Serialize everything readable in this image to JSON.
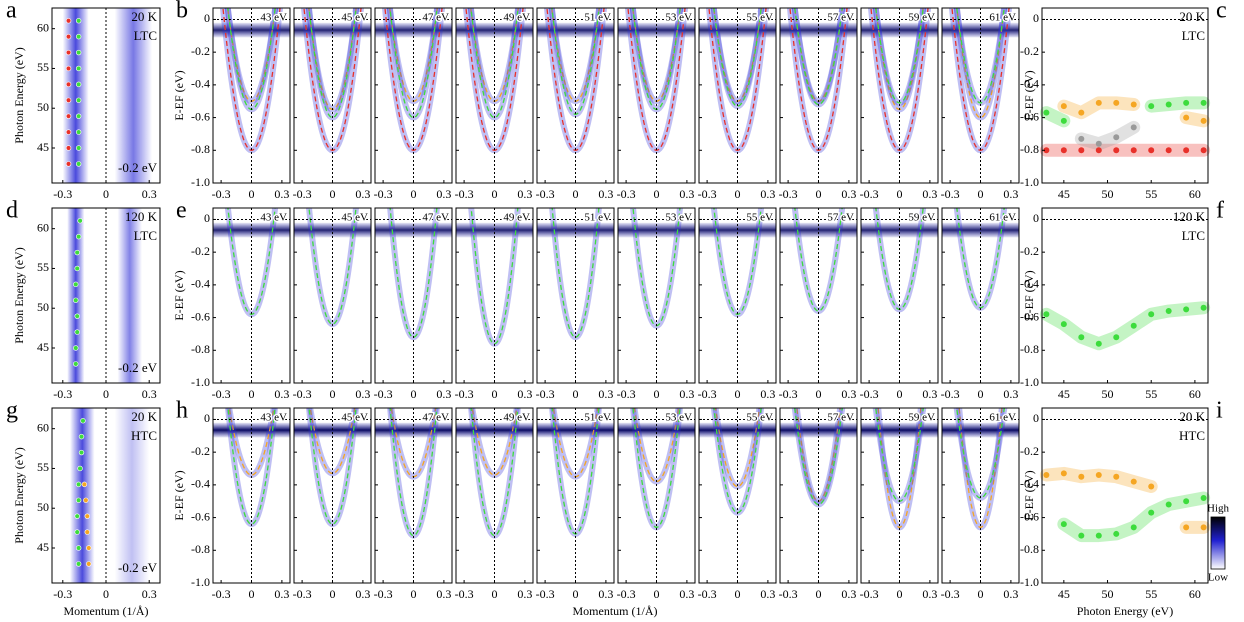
{
  "chart_data": [
    {
      "type": "scatter",
      "label": "a",
      "ylabel": "Photon Energy (eV)",
      "xlim": [
        -0.375,
        0.375
      ],
      "xticks": [
        -0.3,
        0,
        0.3
      ],
      "ylim": [
        40.6,
        62.6
      ],
      "yticks": [
        45,
        50,
        55,
        60
      ],
      "annotations": [
        "20 K",
        "LTC",
        "-0.2 eV"
      ],
      "series": [
        {
          "color": "#e8312a",
          "x": [
            -0.26,
            -0.26,
            -0.26,
            -0.26,
            -0.26,
            -0.26,
            -0.26,
            -0.26,
            -0.26,
            -0.26
          ],
          "values": [
            43,
            45,
            47,
            49,
            51,
            53,
            55,
            57,
            59,
            61
          ]
        },
        {
          "color": "#3ddc3d",
          "x": [
            -0.19,
            -0.19,
            -0.19,
            -0.19,
            -0.19,
            -0.19,
            -0.19,
            -0.19,
            -0.19,
            -0.19
          ],
          "values": [
            43,
            45,
            47,
            49,
            51,
            53,
            55,
            57,
            59,
            61
          ]
        }
      ]
    },
    {
      "type": "spectra",
      "label": "b",
      "ylabel": "E-EF (eV)",
      "xlim": [
        -0.38,
        0.38
      ],
      "xticks": [
        -0.3,
        0,
        0.3
      ],
      "ylim": [
        -1,
        0.07
      ],
      "yticks": [
        0,
        -0.2,
        -0.4,
        -0.6,
        -0.8,
        {
          "value": -1,
          "label": "-1.0"
        }
      ],
      "panels": [
        "43 eV",
        "45 eV",
        "47 eV",
        "49 eV",
        "51 eV",
        "53 eV",
        "55 eV",
        "57 eV",
        "59 eV",
        "61 eV"
      ],
      "bands": [
        {
          "color": "#e8312a",
          "kf": 0.27,
          "values": [
            -0.8,
            -0.8,
            -0.8,
            -0.8,
            -0.8,
            -0.8,
            -0.8,
            -0.8,
            -0.8,
            -0.8
          ]
        },
        {
          "color": "#f5a623",
          "kf": 0.22,
          "values": [
            -0.5,
            -0.55,
            -0.5,
            -0.5,
            -0.5,
            -0.5,
            -0.5,
            -0.5,
            -0.55,
            -0.6
          ]
        },
        {
          "color": "#3ddc3d",
          "kf": 0.22,
          "values": [
            -0.55,
            -0.6,
            -0.6,
            -0.6,
            -0.58,
            -0.55,
            -0.53,
            -0.52,
            -0.51,
            -0.51
          ]
        }
      ]
    },
    {
      "type": "scatter",
      "label": "c",
      "ylabel": "E-EF (eV)",
      "xlim": [
        42.5,
        61.5
      ],
      "xticks": [
        45,
        50,
        55,
        60
      ],
      "ylim": [
        -1,
        0.07
      ],
      "yticks": [
        0,
        -0.2,
        -0.4,
        -0.6,
        -0.8,
        {
          "value": -1,
          "label": "-1.0"
        }
      ],
      "annotations": [
        "20 K",
        "LTC"
      ],
      "series": [
        {
          "color": "#e8312a",
          "x": [
            43,
            45,
            47,
            49,
            51,
            53,
            55,
            57,
            59,
            61
          ],
          "values": [
            -0.8,
            -0.8,
            -0.8,
            -0.8,
            -0.8,
            -0.8,
            -0.8,
            -0.8,
            -0.8,
            -0.8
          ]
        },
        {
          "color": "#9a9a9a",
          "x": [
            43,
            45,
            47,
            49,
            51,
            53,
            55,
            57,
            59,
            61
          ],
          "values": [
            null,
            null,
            -0.73,
            -0.76,
            -0.72,
            -0.66,
            null,
            null,
            null,
            null
          ]
        },
        {
          "color": "#f5a623",
          "x": [
            43,
            45,
            47,
            49,
            51,
            53,
            55,
            57,
            59,
            61
          ],
          "values": [
            null,
            -0.53,
            -0.57,
            -0.51,
            -0.51,
            -0.52,
            null,
            null,
            -0.6,
            -0.62
          ]
        },
        {
          "color": "#3ddc3d",
          "x": [
            43,
            45,
            47,
            49,
            51,
            53,
            55,
            57,
            59,
            61
          ],
          "values": [
            -0.57,
            -0.62,
            null,
            null,
            null,
            null,
            -0.53,
            -0.52,
            -0.51,
            -0.51
          ]
        }
      ]
    },
    {
      "type": "scatter",
      "label": "d",
      "ylabel": "Photon Energy (eV)",
      "xlim": [
        -0.375,
        0.375
      ],
      "xticks": [
        -0.3,
        0,
        0.3
      ],
      "ylim": [
        40.6,
        62.6
      ],
      "yticks": [
        45,
        50,
        55,
        60
      ],
      "annotations": [
        "120 K",
        "LTC",
        "-0.2 eV"
      ],
      "series": [
        {
          "color": "#3ddc3d",
          "x": [
            -0.21,
            -0.21,
            -0.2,
            -0.2,
            -0.21,
            -0.21,
            -0.2,
            -0.2,
            -0.19,
            -0.18
          ],
          "values": [
            43,
            45,
            47,
            49,
            51,
            53,
            55,
            57,
            59,
            61
          ]
        }
      ]
    },
    {
      "type": "spectra",
      "label": "e",
      "ylabel": "E-EF (eV)",
      "xlim": [
        -0.38,
        0.38
      ],
      "xticks": [
        -0.3,
        0,
        0.3
      ],
      "ylim": [
        -1,
        0.07
      ],
      "yticks": [
        0,
        -0.2,
        -0.4,
        -0.6,
        -0.8,
        {
          "value": -1,
          "label": "-1.0"
        }
      ],
      "panels": [
        "43 eV",
        "45 eV",
        "47 eV",
        "49 eV",
        "51 eV",
        "53 eV",
        "55 eV",
        "57 eV",
        "59 eV",
        "61 eV"
      ],
      "bands": [
        {
          "color": "#3ddc3d",
          "kf": 0.22,
          "values": [
            -0.58,
            -0.64,
            -0.72,
            -0.76,
            -0.72,
            -0.65,
            -0.58,
            -0.56,
            -0.55,
            -0.54
          ]
        }
      ]
    },
    {
      "type": "scatter",
      "label": "f",
      "ylabel": "E-EF (eV)",
      "xlim": [
        42.5,
        61.5
      ],
      "xticks": [
        45,
        50,
        55,
        60
      ],
      "ylim": [
        -1,
        0.07
      ],
      "yticks": [
        0,
        -0.2,
        -0.4,
        -0.6,
        -0.8,
        {
          "value": -1,
          "label": "-1.0"
        }
      ],
      "annotations": [
        "120 K",
        "LTC"
      ],
      "series": [
        {
          "color": "#3ddc3d",
          "x": [
            43,
            45,
            47,
            49,
            51,
            53,
            55,
            57,
            59,
            61
          ],
          "values": [
            -0.58,
            -0.64,
            -0.72,
            -0.76,
            -0.72,
            -0.65,
            -0.58,
            -0.56,
            -0.55,
            -0.54
          ]
        }
      ]
    },
    {
      "type": "scatter",
      "label": "g",
      "ylabel": "Photon Energy (eV)",
      "xlabel": "Momentum (1/Å)",
      "xlim": [
        -0.375,
        0.375
      ],
      "xticks": [
        -0.3,
        0,
        0.3
      ],
      "ylim": [
        40.6,
        62.6
      ],
      "yticks": [
        45,
        50,
        55,
        60
      ],
      "annotations": [
        "20 K",
        "HTC",
        "-0.2 eV"
      ],
      "series": [
        {
          "color": "#3ddc3d",
          "x": [
            -0.19,
            -0.19,
            -0.2,
            -0.2,
            -0.19,
            -0.19,
            -0.18,
            -0.17,
            -0.17,
            -0.16
          ],
          "values": [
            43,
            45,
            47,
            49,
            51,
            53,
            55,
            57,
            59,
            61
          ]
        },
        {
          "color": "#f5a623",
          "x": [
            -0.12,
            -0.12,
            -0.13,
            -0.13,
            -0.14,
            -0.15
          ],
          "values": [
            43,
            45,
            47,
            49,
            51,
            53
          ]
        }
      ]
    },
    {
      "type": "spectra",
      "label": "h",
      "ylabel": "E-EF (eV)",
      "xlabel": "Momentum (1/Å)",
      "xlim": [
        -0.38,
        0.38
      ],
      "xticks": [
        -0.3,
        0,
        0.3
      ],
      "ylim": [
        -1,
        0.07
      ],
      "yticks": [
        0,
        -0.2,
        -0.4,
        -0.6,
        -0.8,
        {
          "value": -1,
          "label": "-1.0"
        }
      ],
      "panels": [
        "43 eV",
        "45 eV",
        "47 eV",
        "49 eV",
        "51 eV",
        "53 eV",
        "55 eV",
        "57 eV",
        "59 eV",
        "61 eV"
      ],
      "bands": [
        {
          "color": "#f5a623",
          "kf": 0.2,
          "values": [
            -0.34,
            -0.33,
            -0.35,
            -0.34,
            -0.35,
            -0.38,
            -0.41,
            -0.5,
            -0.66,
            -0.66
          ]
        },
        {
          "color": "#3ddc3d",
          "kf": 0.22,
          "values": [
            -0.64,
            -0.64,
            -0.71,
            -0.71,
            -0.7,
            -0.66,
            -0.57,
            -0.52,
            -0.5,
            -0.48
          ]
        }
      ]
    },
    {
      "type": "scatter",
      "label": "i",
      "ylabel": "E-EF (eV)",
      "xlabel": "Photon Energy (eV)",
      "xlim": [
        42.5,
        61.5
      ],
      "xticks": [
        45,
        50,
        55,
        60
      ],
      "ylim": [
        -1,
        0.07
      ],
      "yticks": [
        0,
        -0.2,
        -0.4,
        -0.6,
        -0.8,
        {
          "value": -1,
          "label": "-1.0"
        }
      ],
      "annotations": [
        "20 K",
        "HTC"
      ],
      "colorbar": [
        "High",
        "Low"
      ],
      "series": [
        {
          "color": "#f5a623",
          "x": [
            43,
            45,
            47,
            49,
            51,
            53,
            55,
            57,
            59,
            61
          ],
          "values": [
            -0.34,
            -0.33,
            -0.35,
            -0.34,
            -0.35,
            -0.38,
            -0.41,
            null,
            -0.66,
            -0.66
          ]
        },
        {
          "color": "#3ddc3d",
          "x": [
            43,
            45,
            47,
            49,
            51,
            53,
            55,
            57,
            59,
            61
          ],
          "values": [
            null,
            -0.64,
            -0.71,
            -0.71,
            -0.7,
            -0.66,
            -0.57,
            -0.52,
            -0.5,
            -0.48
          ]
        }
      ]
    }
  ]
}
